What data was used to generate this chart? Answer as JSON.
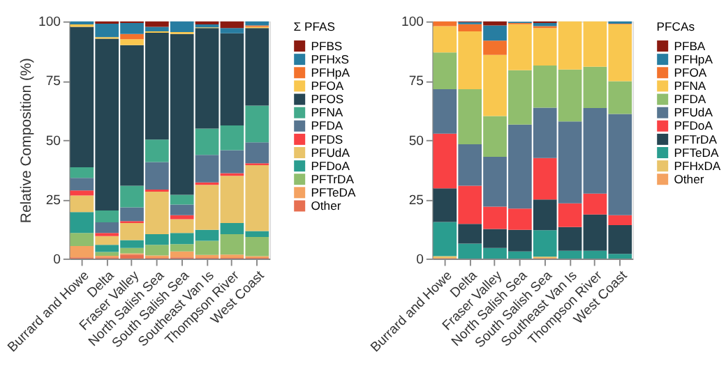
{
  "chart_data": [
    {
      "type": "bar",
      "stacked": true,
      "ylabel": "Relative Composition (%)",
      "legend_title": "Σ PFAS",
      "legend": "right",
      "categories": [
        "Burrard and Howe",
        "Delta",
        "Fraser Valley",
        "North Salish Sea",
        "South Salish Sea",
        "Southeast Van Is",
        "Thompson River",
        "West Coast"
      ],
      "ylim": [
        0,
        100
      ],
      "yticks": [
        0,
        25,
        50,
        75,
        100
      ],
      "series": [
        {
          "name": "Other",
          "color": "#e76f51",
          "values": [
            0.5,
            0.5,
            1.7,
            0.3,
            0.5,
            0.3,
            0.3,
            0.3
          ]
        },
        {
          "name": "PFTeDA",
          "color": "#f4a261",
          "values": [
            4.8,
            0.7,
            0.5,
            1,
            2.5,
            1.2,
            1.4,
            0.7
          ]
        },
        {
          "name": "PFTrDA",
          "color": "#90be6d",
          "values": [
            5.5,
            1.6,
            2.3,
            4.5,
            3.1,
            6,
            8.6,
            8.1
          ]
        },
        {
          "name": "PFDoA",
          "color": "#2a9d8f",
          "values": [
            8.8,
            3,
            3.3,
            4.5,
            4.7,
            4.6,
            4.7,
            2.5
          ]
        },
        {
          "name": "PFUdA",
          "color": "#e9c46a",
          "values": [
            7,
            3.7,
            7.2,
            17.9,
            5.8,
            19,
            19.9,
            27.8
          ]
        },
        {
          "name": "PFDS",
          "color": "#f94144",
          "values": [
            2.1,
            1.3,
            0.8,
            0.9,
            1.7,
            1,
            1.1,
            0.8
          ]
        },
        {
          "name": "PFDA",
          "color": "#577590",
          "values": [
            5.3,
            4.5,
            5.8,
            11.6,
            4.5,
            11.6,
            9.7,
            8.8
          ]
        },
        {
          "name": "PFNA",
          "color": "#43aa8b",
          "values": [
            4.5,
            5,
            9.1,
            9.5,
            4.1,
            11.1,
            10.4,
            15.5
          ]
        },
        {
          "name": "PFOS",
          "color": "#264653",
          "values": [
            59.2,
            72.4,
            59.3,
            45,
            67.8,
            42.4,
            38.9,
            32.7
          ]
        },
        {
          "name": "PFOA",
          "color": "#f9c74f",
          "values": [
            1,
            0.7,
            2.5,
            0.6,
            0.8,
            0.3,
            0,
            0.5
          ]
        },
        {
          "name": "PFHpA",
          "color": "#f3722c",
          "values": [
            0,
            0,
            2.2,
            0,
            0,
            0,
            0,
            0.6
          ]
        },
        {
          "name": "PFHxS",
          "color": "#277da1",
          "values": [
            1.3,
            5.6,
            4.6,
            1.9,
            4.5,
            1.2,
            2.2,
            1.7
          ]
        },
        {
          "name": "PFBS",
          "color": "#8b1a10",
          "values": [
            0,
            1,
            0.7,
            2.3,
            0,
            1.3,
            2.8,
            0
          ]
        }
      ]
    },
    {
      "type": "bar",
      "stacked": true,
      "legend_title": "PFCAs",
      "legend": "right",
      "categories": [
        "Burrard and Howe",
        "Delta",
        "Fraser Valley",
        "North Salish Sea",
        "South Salish Sea",
        "Southeast Van Is",
        "Thompson River",
        "West Coast"
      ],
      "ylim": [
        0,
        100
      ],
      "yticks": [
        0,
        25,
        50,
        75,
        100
      ],
      "series": [
        {
          "name": "Other",
          "color": "#f4a261",
          "values": [
            0.3,
            0,
            0,
            0,
            0.3,
            0,
            0,
            0
          ]
        },
        {
          "name": "PFHxDA",
          "color": "#e9c46a",
          "values": [
            0.7,
            0,
            0,
            0,
            0.5,
            0,
            0,
            0
          ]
        },
        {
          "name": "PFTeDA",
          "color": "#2a9d8f",
          "values": [
            14.4,
            6.3,
            4.5,
            3,
            11.2,
            3.3,
            3.3,
            2
          ]
        },
        {
          "name": "PFTrDA",
          "color": "#264653",
          "values": [
            14.2,
            8.3,
            8,
            9.1,
            12.9,
            10,
            15.3,
            12.1
          ]
        },
        {
          "name": "PFDoA",
          "color": "#f94144",
          "values": [
            23.1,
            16.1,
            9.4,
            9,
            17.5,
            10,
            8.8,
            4.2
          ]
        },
        {
          "name": "PFUdA",
          "color": "#577590",
          "values": [
            18.7,
            17.5,
            21,
            35.4,
            21.2,
            34.5,
            36.1,
            42.7
          ]
        },
        {
          "name": "PFDA",
          "color": "#90be6d",
          "values": [
            15.5,
            23.2,
            17.2,
            22.9,
            17.8,
            21.9,
            17.4,
            13.8
          ]
        },
        {
          "name": "PFNA",
          "color": "#f9c74f",
          "values": [
            11.1,
            24.4,
            25.8,
            19.4,
            15.8,
            20.3,
            19.1,
            24
          ]
        },
        {
          "name": "PFOA",
          "color": "#f3722c",
          "values": [
            2,
            3,
            6,
            0.5,
            0.8,
            0,
            0,
            0.2
          ]
        },
        {
          "name": "PFHpA",
          "color": "#277da1",
          "values": [
            0,
            0.9,
            6.4,
            0.5,
            1.3,
            0,
            0,
            1
          ]
        },
        {
          "name": "PFBA",
          "color": "#8b1a10",
          "values": [
            0,
            0.3,
            1.7,
            null,
            0.7,
            0,
            0,
            0
          ]
        }
      ]
    }
  ]
}
